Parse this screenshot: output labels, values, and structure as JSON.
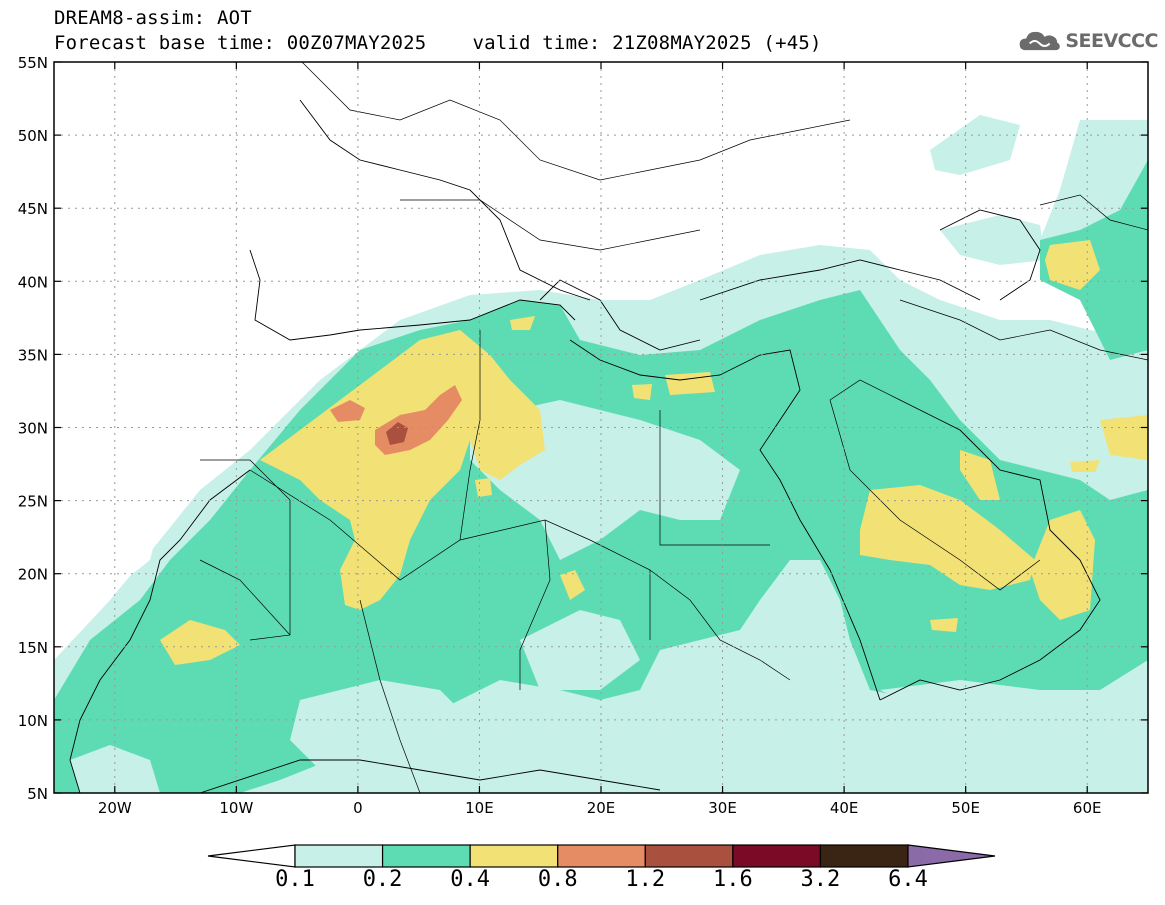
{
  "header": {
    "title": "DREAM8-assim: AOT",
    "base_time": "Forecast base time: 00Z07MAY2025",
    "valid_time": "valid time: 21Z08MAY2025 (+45)",
    "logo_text": "SEEVCCC"
  },
  "axes": {
    "lat_labels": [
      "55N",
      "50N",
      "45N",
      "40N",
      "35N",
      "30N",
      "25N",
      "20N",
      "15N",
      "10N",
      "5N"
    ],
    "lat_values": [
      55,
      50,
      45,
      40,
      35,
      30,
      25,
      20,
      15,
      10,
      5
    ],
    "lon_labels": [
      "20W",
      "10W",
      "0",
      "10E",
      "20E",
      "30E",
      "40E",
      "50E",
      "60E"
    ],
    "lon_values": [
      -20,
      -10,
      0,
      10,
      20,
      30,
      40,
      50,
      60
    ],
    "lon_range": [
      -25,
      65
    ],
    "lat_range": [
      5,
      55
    ]
  },
  "colorbar": {
    "labels": [
      "0.1",
      "0.2",
      "0.4",
      "0.8",
      "1.2",
      "1.6",
      "3.2",
      "6.4"
    ],
    "colors": [
      "#ffffff",
      "#c6f0e8",
      "#5ddcb3",
      "#f2e275",
      "#e68c64",
      "#a9503f",
      "#7a0a26",
      "#3a2414",
      "#8b6aa8"
    ]
  },
  "colors": {
    "lvl1": "#c6f0e8",
    "lvl2": "#5ddcb3",
    "lvl3": "#f2e275",
    "lvl4": "#e68c64",
    "lvl5": "#a9503f",
    "grid": "#999999"
  }
}
